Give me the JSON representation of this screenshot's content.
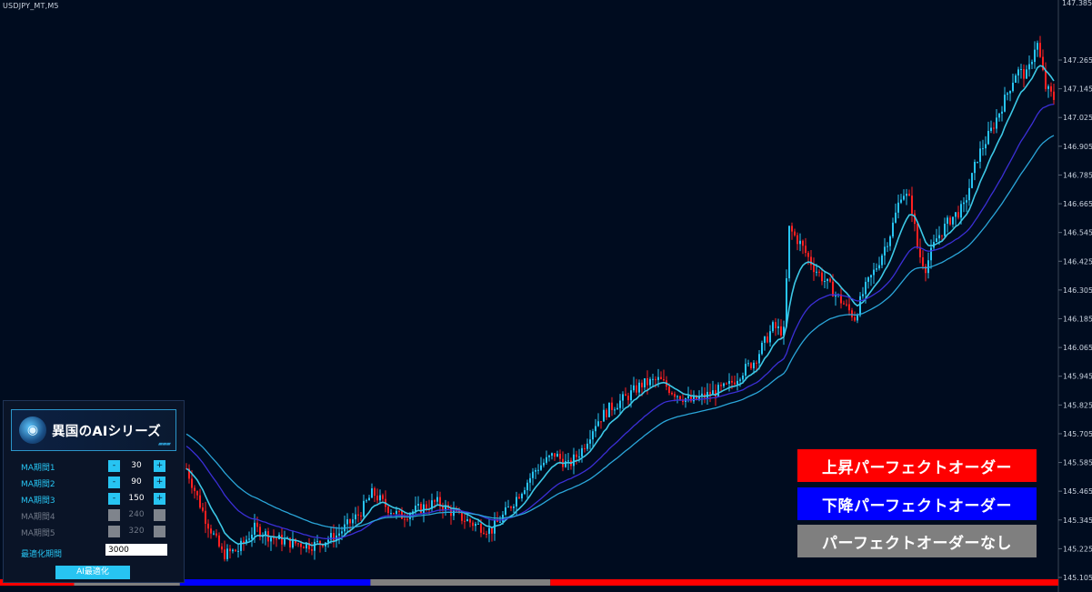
{
  "symbol": "USDJPY_MT,M5",
  "price_axis": {
    "top_partial": "147.385",
    "labels": [
      "147.265",
      "147.145",
      "147.025",
      "146.905",
      "146.785",
      "146.665",
      "146.545",
      "146.425",
      "146.305",
      "146.185",
      "146.065",
      "145.945",
      "145.825",
      "145.705",
      "145.585",
      "145.465",
      "145.345",
      "145.225",
      "145.105"
    ]
  },
  "legend": {
    "up": {
      "label": "上昇パーフェクトオーダー",
      "color": "#ff0000"
    },
    "down": {
      "label": "下降パーフェクトオーダー",
      "color": "#0000ff"
    },
    "none": {
      "label": "パーフェクトオーダーなし",
      "color": "#7f7f7f"
    }
  },
  "panel": {
    "logo_text": "異国のAIシリーズ",
    "minus_symbol": "-",
    "plus_symbol": "+",
    "rows": [
      {
        "label": "MA期間1",
        "value": "30"
      },
      {
        "label": "MA期間2",
        "value": "90"
      },
      {
        "label": "MA期間3",
        "value": "150"
      },
      {
        "label": "MA期間4",
        "value": "240"
      },
      {
        "label": "MA期間5",
        "value": "320"
      }
    ],
    "opt_label": "最適化期間",
    "opt_value": "3000",
    "ai_button": "AI最適化"
  },
  "colors": {
    "background": "#000c1f",
    "candle_up": "#27c4f2",
    "candle_down": "#ff2020",
    "ma1": "#3cc8e6",
    "ma2": "#3b2fd6",
    "ma3": "#2aa6d9",
    "axis_text": "#c9d2de"
  },
  "state_bar": [
    {
      "state": "up",
      "from": 0,
      "to": 0.07
    },
    {
      "state": "none",
      "from": 0.07,
      "to": 0.17
    },
    {
      "state": "down",
      "from": 0.17,
      "to": 0.35
    },
    {
      "state": "none",
      "from": 0.35,
      "to": 0.52
    },
    {
      "state": "up",
      "from": 0.52,
      "to": 1
    }
  ]
}
